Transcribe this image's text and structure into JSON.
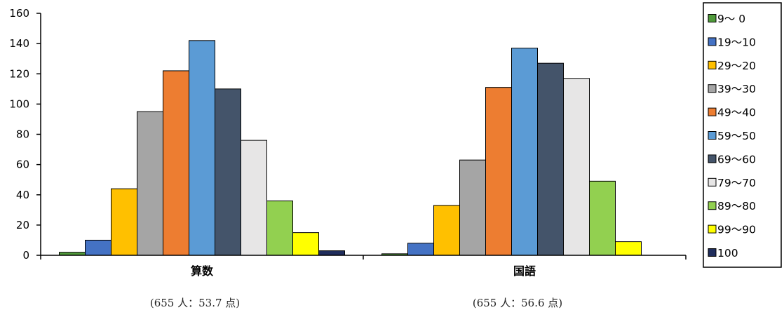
{
  "chart_data": {
    "type": "bar",
    "categories": [
      "算数",
      "国語"
    ],
    "category_notes": [
      "(655 人：53.7 点)",
      "(655 人：56.6 点)"
    ],
    "ylim": [
      0,
      160
    ],
    "yticks": [
      0,
      20,
      40,
      60,
      80,
      100,
      120,
      140,
      160
    ],
    "grid": false,
    "legend_position": "right",
    "series": [
      {
        "name": "9～ 0",
        "color": "#4f9a3a",
        "values": [
          2,
          1
        ]
      },
      {
        "name": "19～10",
        "color": "#4472c4",
        "values": [
          10,
          8
        ]
      },
      {
        "name": "29～20",
        "color": "#ffc000",
        "values": [
          44,
          33
        ]
      },
      {
        "name": "39～30",
        "color": "#a5a5a5",
        "values": [
          95,
          63
        ]
      },
      {
        "name": "49～40",
        "color": "#ed7d31",
        "values": [
          122,
          111
        ]
      },
      {
        "name": "59～50",
        "color": "#5b9bd5",
        "values": [
          142,
          137
        ]
      },
      {
        "name": "69～60",
        "color": "#44546a",
        "values": [
          110,
          127
        ]
      },
      {
        "name": "79～70",
        "color": "#e7e6e6",
        "values": [
          76,
          117
        ]
      },
      {
        "name": "89～80",
        "color": "#92d050",
        "values": [
          36,
          49
        ]
      },
      {
        "name": "99～90",
        "color": "#ffff00",
        "values": [
          15,
          9
        ]
      },
      {
        "name": "100",
        "color": "#1f2d5c",
        "values": [
          3,
          0
        ]
      }
    ]
  }
}
